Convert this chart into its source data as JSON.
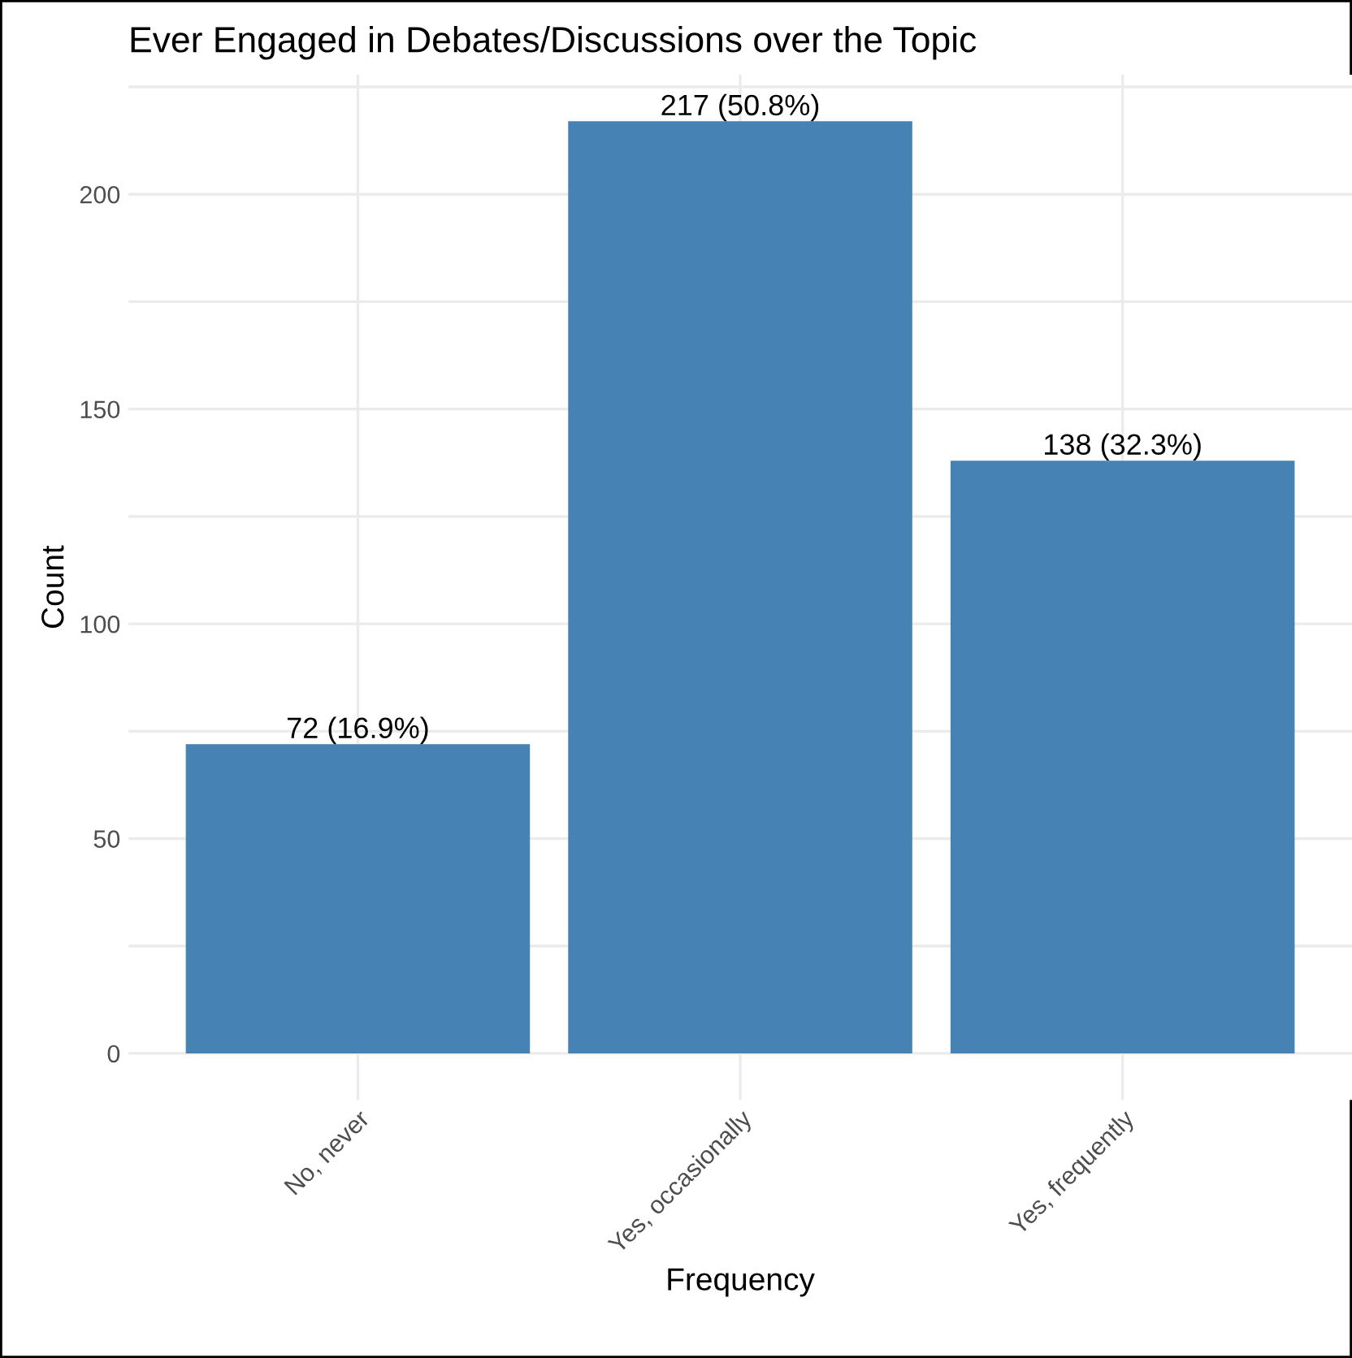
{
  "chart_data": {
    "type": "bar",
    "title": "Ever Engaged in Debates/Discussions over the Topic",
    "xlabel": "Frequency",
    "ylabel": "Count",
    "categories": [
      "No, never",
      "Yes, occasionally",
      "Yes, frequently"
    ],
    "values": [
      72,
      217,
      138
    ],
    "color": "#4682b4",
    "value_labels": [
      "72 (16.9%)",
      "217 (50.8%)",
      "138 (32.3%)"
    ],
    "ylim": [
      -10.85,
      227.85
    ],
    "yticks": [
      0,
      {
        "value": 25,
        "label": null
      },
      50,
      {
        "value": 75,
        "label": null
      },
      100,
      {
        "value": 125,
        "label": null
      },
      150,
      {
        "value": 175,
        "label": null
      },
      200,
      {
        "value": 225,
        "label": null
      }
    ],
    "grid": true,
    "legend": false
  }
}
